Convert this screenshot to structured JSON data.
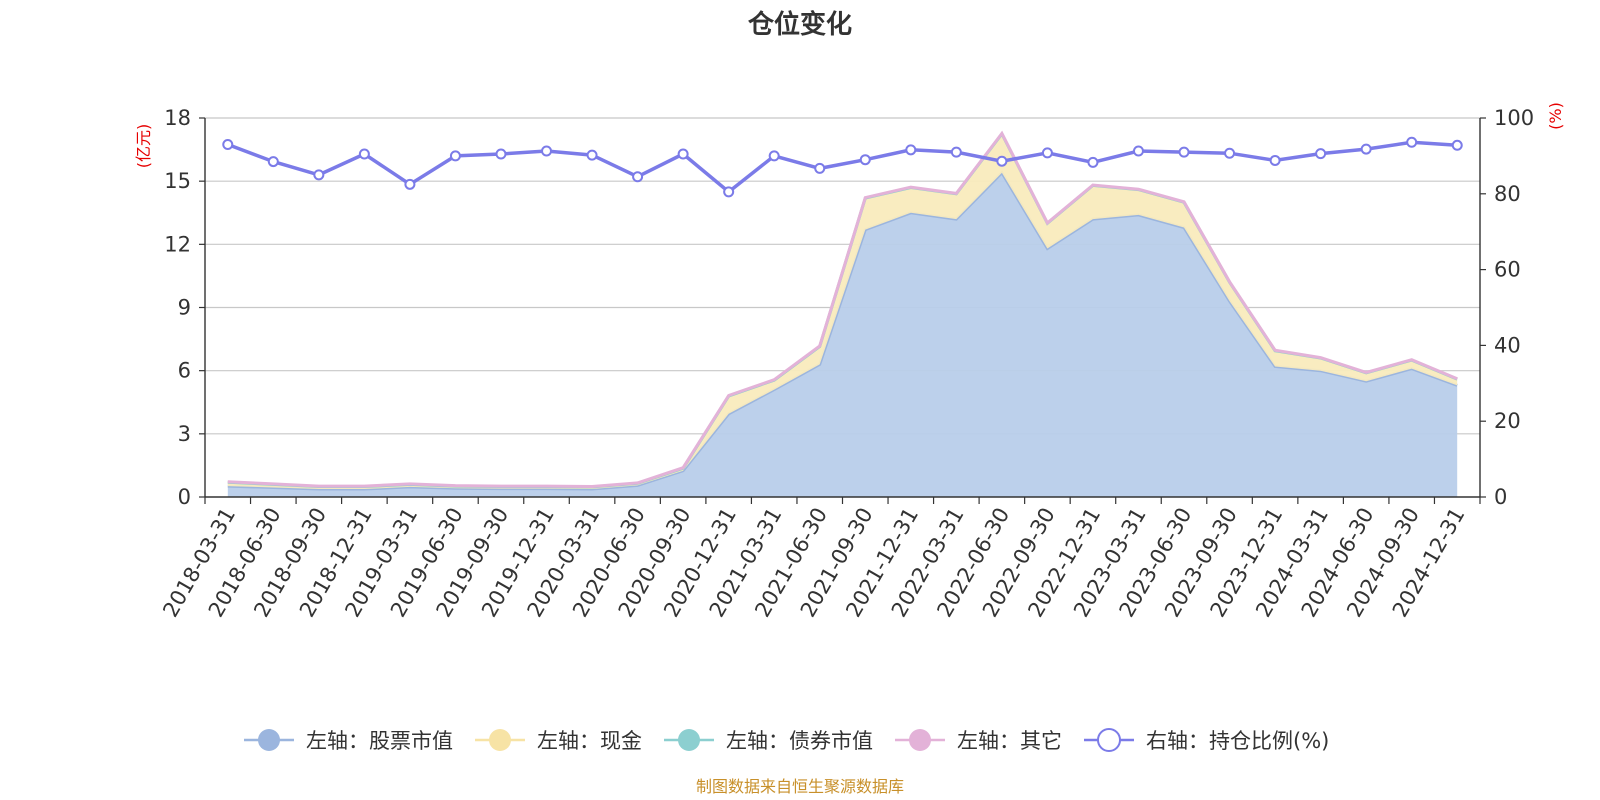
{
  "chart_data": {
    "type": "area",
    "title": "仓位变化",
    "left_axis_unit": "(亿元)",
    "right_axis_unit": "(%)",
    "left_ylim": [
      0,
      18
    ],
    "left_ticks": [
      "0",
      "3",
      "6",
      "9",
      "12",
      "15",
      "18"
    ],
    "right_ylim": [
      0,
      100
    ],
    "right_ticks": [
      "0",
      "20",
      "40",
      "60",
      "80",
      "100"
    ],
    "grid": true,
    "stacked": true,
    "legend_position": "bottom",
    "categories": [
      "2018-03-31",
      "2018-06-30",
      "2018-09-30",
      "2018-12-31",
      "2019-03-31",
      "2019-06-30",
      "2019-09-30",
      "2019-12-31",
      "2020-03-31",
      "2020-06-30",
      "2020-09-30",
      "2020-12-31",
      "2021-03-31",
      "2021-06-30",
      "2021-09-30",
      "2021-12-31",
      "2022-03-31",
      "2022-06-30",
      "2022-09-30",
      "2022-12-31",
      "2023-03-31",
      "2023-06-30",
      "2023-09-30",
      "2023-12-31",
      "2024-03-31",
      "2024-06-30",
      "2024-09-30",
      "2024-12-31"
    ],
    "series": [
      {
        "name": "左轴：股票市值",
        "axis": "left",
        "kind": "area",
        "color": "#9bb5de",
        "fill": "#b8cdea",
        "values": [
          0.52,
          0.45,
          0.38,
          0.38,
          0.48,
          0.42,
          0.4,
          0.4,
          0.38,
          0.55,
          1.25,
          3.95,
          5.1,
          6.3,
          12.7,
          13.5,
          13.2,
          15.4,
          11.8,
          13.2,
          13.4,
          12.8,
          9.3,
          6.2,
          6.0,
          5.5,
          6.1,
          5.3
        ]
      },
      {
        "name": "左轴：现金",
        "axis": "left",
        "kind": "area",
        "color": "#f7e3a5",
        "fill": "#f9ebbd",
        "values": [
          0.18,
          0.15,
          0.12,
          0.12,
          0.12,
          0.1,
          0.1,
          0.1,
          0.1,
          0.1,
          0.12,
          0.85,
          0.45,
          0.85,
          1.5,
          1.2,
          1.2,
          1.85,
          1.2,
          1.6,
          1.2,
          1.2,
          0.9,
          0.75,
          0.6,
          0.4,
          0.4,
          0.3
        ]
      },
      {
        "name": "左轴：债券市值",
        "axis": "left",
        "kind": "area",
        "color": "#8ccfd0",
        "fill": "#8ccfd0",
        "values": [
          0,
          0,
          0,
          0,
          0,
          0,
          0,
          0,
          0,
          0,
          0,
          0,
          0,
          0,
          0,
          0,
          0,
          0,
          0,
          0,
          0,
          0,
          0,
          0,
          0,
          0,
          0,
          0
        ]
      },
      {
        "name": "左轴：其它",
        "axis": "left",
        "kind": "area",
        "color": "#e3b2d8",
        "fill": "#e3b2d8",
        "values": [
          0.02,
          0.02,
          0.02,
          0.02,
          0.02,
          0.02,
          0.02,
          0.02,
          0.02,
          0.02,
          0.02,
          0.02,
          0.02,
          0.02,
          0.02,
          0.02,
          0.02,
          0.02,
          0.02,
          0.02,
          0.02,
          0.02,
          0.02,
          0.02,
          0.02,
          0.02,
          0.02,
          0.02
        ]
      },
      {
        "name": "右轴：持仓比例(%)",
        "axis": "right",
        "kind": "line",
        "color": "#7b7be8",
        "values": [
          93,
          88.5,
          85,
          90.5,
          82.5,
          90,
          90.5,
          91.3,
          90.2,
          84.5,
          90.5,
          80.5,
          90,
          86.7,
          89,
          91.6,
          91,
          88.6,
          90.8,
          88.3,
          91.3,
          91,
          90.7,
          88.8,
          90.6,
          91.8,
          93.6,
          92.8
        ]
      }
    ]
  },
  "source_note": "制图数据来自恒生聚源数据库"
}
